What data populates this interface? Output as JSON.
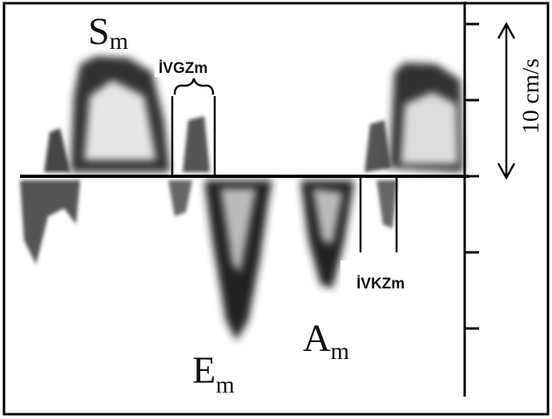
{
  "labels": [
    {
      "main": "S",
      "sub": "m"
    },
    {
      "main": "E",
      "sub": "m"
    },
    {
      "main": "A",
      "sub": "m"
    }
  ],
  "intervals": [
    "İVGZm",
    "İVKZm"
  ],
  "scale": "10 cm/s"
}
